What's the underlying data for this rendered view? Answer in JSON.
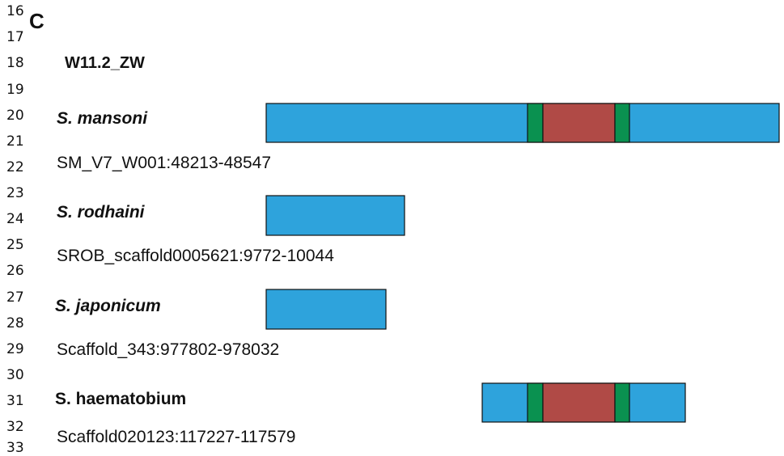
{
  "line_numbers": [
    "16",
    "17",
    "18",
    "19",
    "20",
    "21",
    "22",
    "23",
    "24",
    "25",
    "26",
    "27",
    "28",
    "29",
    "30",
    "31",
    "32",
    "33"
  ],
  "panel_label": "C",
  "title": "W11.2_ZW",
  "species": [
    {
      "name": "S. mansoni",
      "coordinates": "SM_V7_W001:48213-48547"
    },
    {
      "name": "S. rodhaini",
      "coordinates": "SROB_scaffold0005621:9772-10044"
    },
    {
      "name": "S. japonicum",
      "coordinates": "Scaffold_343:977802-978032"
    },
    {
      "name": "S. haematobium",
      "coordinates": "Scaffold020123:117227-117579"
    }
  ],
  "colors": {
    "blue": "#2ea3dc",
    "green": "#0a9150",
    "red": "#b04a46",
    "outline": "#111111"
  }
}
